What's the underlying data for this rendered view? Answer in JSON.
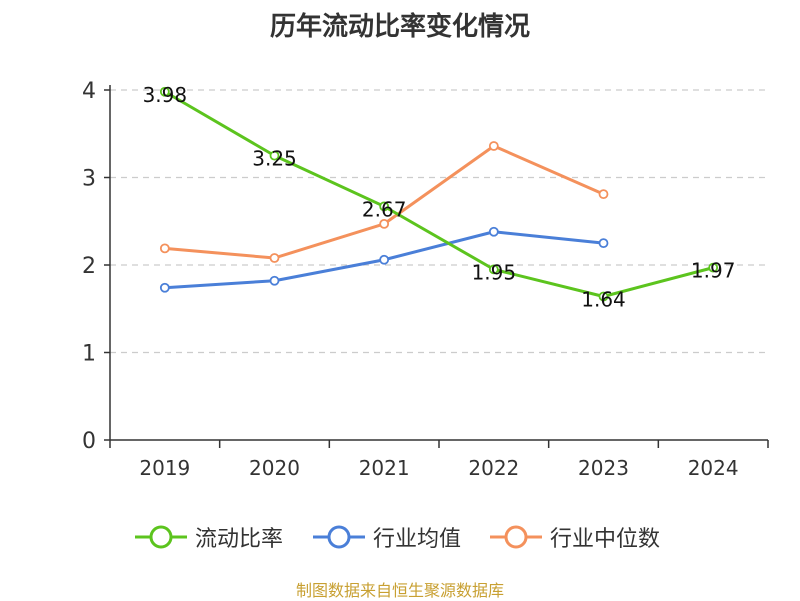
{
  "title": "历年流动比率变化情况",
  "source": "制图数据来自恒生聚源数据库",
  "chart_data": {
    "type": "line",
    "title": "历年流动比率变化情况",
    "categories": [
      "2019",
      "2020",
      "2021",
      "2022",
      "2023",
      "2024"
    ],
    "ylim": [
      0,
      4
    ],
    "yticks": [
      0,
      1,
      2,
      3,
      4
    ],
    "grid": true,
    "legend_position": "bottom",
    "series": [
      {
        "name": "流动比率",
        "color": "#5cc41e",
        "values": [
          3.98,
          3.25,
          2.67,
          1.95,
          1.64,
          1.97
        ],
        "labels": [
          "3.98",
          "3.25",
          "2.67",
          "1.95",
          "1.64",
          "1.97"
        ]
      },
      {
        "name": "行业均值",
        "color": "#4a7fd8",
        "values": [
          1.74,
          1.82,
          2.06,
          2.38,
          2.25,
          null
        ]
      },
      {
        "name": "行业中位数",
        "color": "#f4915c",
        "values": [
          2.19,
          2.08,
          2.47,
          3.36,
          2.81,
          null
        ]
      }
    ]
  }
}
